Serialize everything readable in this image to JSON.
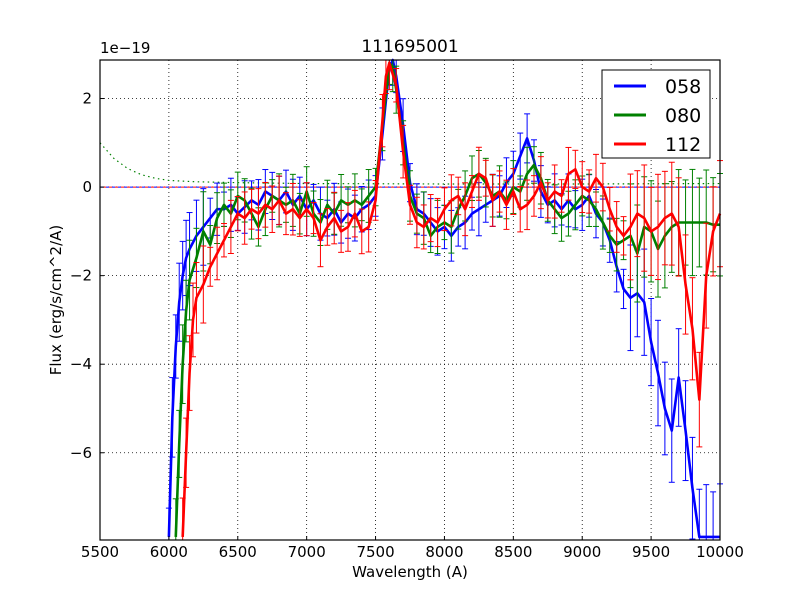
{
  "chart_data": {
    "type": "line",
    "title": "111695001",
    "xlabel": "Wavelength (A)",
    "ylabel": "Flux (erg/s/cm^2/A)",
    "y_scale_label": "1e−19",
    "xlim": [
      5500,
      10000
    ],
    "ylim": [
      -7.97,
      2.87
    ],
    "xticks": [
      5500,
      6000,
      6500,
      7000,
      7500,
      8000,
      8500,
      9000,
      9500,
      10000
    ],
    "xtick_labels": [
      "5500",
      "6000",
      "6500",
      "7000",
      "7500",
      "8000",
      "8500",
      "9000",
      "9500",
      "10000"
    ],
    "yticks": [
      2,
      0,
      -2,
      -4,
      -6
    ],
    "ytick_labels": [
      "2",
      "0",
      "−2",
      "−4",
      "−6"
    ],
    "grid": true,
    "legend_position": "upper right",
    "series": [
      {
        "name": "058",
        "color": "#0000ff",
        "x": [
          6000,
          6025,
          6050,
          6075,
          6100,
          6125,
          6150,
          6200,
          6250,
          6300,
          6350,
          6400,
          6450,
          6500,
          6550,
          6600,
          6650,
          6700,
          6750,
          6800,
          6850,
          6900,
          6950,
          7000,
          7050,
          7100,
          7150,
          7200,
          7250,
          7300,
          7350,
          7400,
          7450,
          7500,
          7550,
          7600,
          7625,
          7650,
          7700,
          7750,
          7800,
          7850,
          7900,
          7950,
          8000,
          8050,
          8100,
          8150,
          8200,
          8250,
          8300,
          8350,
          8400,
          8450,
          8500,
          8550,
          8600,
          8650,
          8700,
          8750,
          8800,
          8850,
          8900,
          8950,
          9000,
          9050,
          9100,
          9150,
          9200,
          9250,
          9300,
          9350,
          9400,
          9450,
          9500,
          9550,
          9600,
          9650,
          9700,
          9750,
          9800,
          9850,
          9900,
          9950,
          10000
        ],
        "y": [
          -7.9,
          -5.2,
          -3.6,
          -2.6,
          -2.0,
          -1.6,
          -1.4,
          -1.1,
          -0.9,
          -0.7,
          -0.5,
          -0.5,
          -0.4,
          -0.6,
          -0.45,
          -0.3,
          -0.4,
          -0.1,
          -0.2,
          -0.3,
          -0.1,
          -0.4,
          -0.2,
          -0.5,
          -0.3,
          -0.6,
          -0.7,
          -0.5,
          -0.8,
          -0.6,
          -0.7,
          -0.5,
          -0.4,
          -0.2,
          1.2,
          2.7,
          2.9,
          2.5,
          1.4,
          0.1,
          -0.5,
          -0.6,
          -0.8,
          -1.0,
          -0.9,
          -1.1,
          -0.9,
          -0.8,
          -0.6,
          -0.5,
          -0.4,
          -0.3,
          -0.2,
          0.1,
          0.3,
          0.7,
          1.1,
          0.6,
          -0.1,
          -0.4,
          -0.3,
          -0.5,
          -0.3,
          -0.5,
          -0.4,
          -0.2,
          -0.6,
          -0.8,
          -1.2,
          -1.8,
          -2.3,
          -2.5,
          -2.4,
          -2.6,
          -3.5,
          -4.2,
          -5.0,
          -5.5,
          -4.3,
          -5.5,
          -6.8,
          -7.9,
          -7.9,
          -7.9,
          -7.9
        ]
      },
      {
        "name": "080",
        "color": "#008000",
        "x": [
          6050,
          6075,
          6100,
          6125,
          6150,
          6200,
          6250,
          6300,
          6350,
          6400,
          6450,
          6500,
          6550,
          6600,
          6650,
          6700,
          6750,
          6800,
          6850,
          6900,
          6950,
          7000,
          7050,
          7100,
          7150,
          7200,
          7250,
          7300,
          7350,
          7400,
          7450,
          7500,
          7550,
          7600,
          7625,
          7650,
          7700,
          7750,
          7800,
          7850,
          7900,
          7950,
          8000,
          8050,
          8100,
          8150,
          8200,
          8250,
          8300,
          8350,
          8400,
          8450,
          8500,
          8550,
          8600,
          8650,
          8700,
          8750,
          8800,
          8850,
          8900,
          8950,
          9000,
          9050,
          9100,
          9150,
          9200,
          9250,
          9300,
          9350,
          9400,
          9450,
          9500,
          9550,
          9600,
          9650,
          9700,
          9750,
          9800,
          9850,
          9900,
          9950,
          10000
        ],
        "y": [
          -7.9,
          -5.8,
          -4.0,
          -2.8,
          -2.1,
          -1.6,
          -1.0,
          -1.3,
          -0.7,
          -0.4,
          -0.6,
          -0.2,
          -0.3,
          -0.6,
          -0.9,
          -0.5,
          -0.2,
          -0.3,
          -0.4,
          -0.3,
          -0.6,
          -0.1,
          -0.6,
          -0.8,
          -0.4,
          -0.6,
          -0.3,
          -0.4,
          -0.3,
          -0.4,
          -0.2,
          0.0,
          1.4,
          2.8,
          2.7,
          2.2,
          1.0,
          -0.2,
          -0.6,
          -0.7,
          -1.1,
          -0.9,
          -0.8,
          -0.9,
          -0.5,
          -0.2,
          0.2,
          0.3,
          0.1,
          -0.2,
          -0.1,
          -0.3,
          0.0,
          -0.1,
          0.3,
          0.5,
          0.2,
          -0.3,
          -0.5,
          -0.7,
          -0.6,
          -0.4,
          -0.2,
          -0.3,
          -0.5,
          -0.8,
          -1.1,
          -1.3,
          -1.2,
          -1.1,
          -1.5,
          -0.9,
          -1.0,
          -1.4,
          -1.1,
          -0.9,
          -0.8,
          -0.8,
          -0.8,
          -0.8,
          -0.8,
          -0.85,
          -0.85
        ]
      },
      {
        "name": "112",
        "color": "#ff0000",
        "x": [
          6100,
          6125,
          6150,
          6175,
          6200,
          6250,
          6300,
          6350,
          6400,
          6450,
          6500,
          6550,
          6600,
          6650,
          6700,
          6750,
          6800,
          6850,
          6900,
          6950,
          7000,
          7050,
          7100,
          7150,
          7200,
          7250,
          7300,
          7350,
          7400,
          7450,
          7500,
          7550,
          7575,
          7600,
          7650,
          7700,
          7750,
          7800,
          7850,
          7900,
          7950,
          8000,
          8050,
          8100,
          8150,
          8200,
          8250,
          8300,
          8350,
          8400,
          8450,
          8500,
          8550,
          8600,
          8650,
          8700,
          8750,
          8800,
          8850,
          8900,
          8950,
          9000,
          9050,
          9100,
          9150,
          9200,
          9250,
          9300,
          9350,
          9400,
          9450,
          9500,
          9550,
          9600,
          9650,
          9700,
          9750,
          9800,
          9850,
          9900,
          9950,
          10000
        ],
        "y": [
          -7.9,
          -6.0,
          -4.2,
          -3.0,
          -2.5,
          -2.2,
          -1.8,
          -1.5,
          -1.2,
          -0.9,
          -0.6,
          -0.7,
          -0.5,
          -0.6,
          -0.4,
          -0.5,
          -0.3,
          -0.6,
          -0.5,
          -0.7,
          -0.5,
          -0.7,
          -1.2,
          -0.9,
          -0.7,
          -1.0,
          -0.9,
          -0.6,
          -1.0,
          -0.9,
          -0.3,
          1.5,
          2.5,
          2.8,
          2.3,
          0.8,
          -0.4,
          -0.8,
          -0.9,
          -0.7,
          -0.8,
          -0.5,
          -0.3,
          -0.2,
          -0.5,
          -0.1,
          0.3,
          0.2,
          -0.3,
          -0.1,
          -0.4,
          -0.1,
          -0.5,
          -0.4,
          -0.2,
          0.1,
          -0.3,
          -0.1,
          -0.2,
          0.3,
          0.4,
          0.0,
          -0.1,
          0.2,
          0.0,
          -0.5,
          -0.9,
          -1.1,
          -0.9,
          -0.6,
          -0.7,
          -1.0,
          -0.9,
          -0.7,
          -0.6,
          -0.9,
          -2.2,
          -3.2,
          -4.8,
          -2.0,
          -1.0,
          -0.6
        ]
      }
    ],
    "reference_lines": [
      {
        "name": "zero-line-blue",
        "color": "#0000ff",
        "style": "dashed",
        "value": 0
      },
      {
        "name": "zero-line-red",
        "color": "#ff0000",
        "style": "dashed",
        "value": 0
      },
      {
        "name": "sky-model-green",
        "color": "#008000",
        "style": "dotted",
        "x": [
          5500,
          5600,
          5700,
          5800,
          5900,
          6000,
          6200,
          6500,
          7000,
          8000,
          9000,
          10000
        ],
        "y": [
          1.0,
          0.65,
          0.42,
          0.28,
          0.2,
          0.15,
          0.12,
          0.1,
          0.08,
          0.07,
          0.07,
          0.08
        ]
      }
    ]
  }
}
